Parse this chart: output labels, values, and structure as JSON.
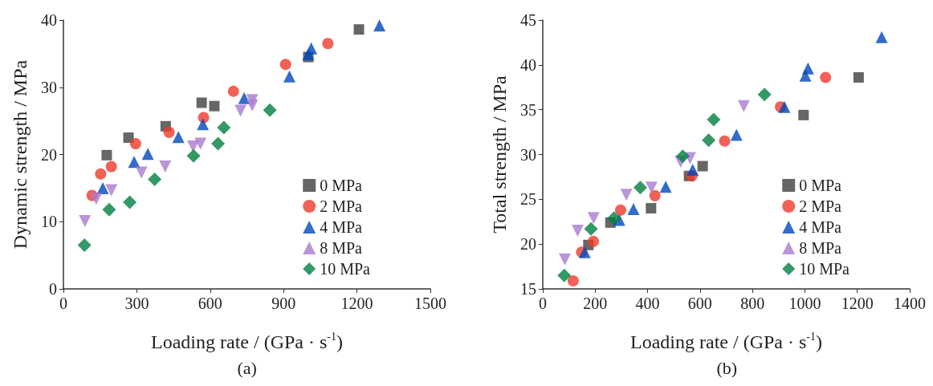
{
  "chart_data": [
    {
      "type": "scatter",
      "xlabel": "Loading rate / (GPa · s$^{-1}$)",
      "ylabel": "Dynamic strength / MPa",
      "annotations": [
        "(a)"
      ],
      "xlim": [
        0,
        1500
      ],
      "xticks": [
        0,
        300,
        600,
        900,
        1200,
        1500
      ],
      "ylim": [
        0,
        40
      ],
      "yticks": [
        0,
        10,
        20,
        30,
        40
      ],
      "grid": false,
      "legend": "bottom right",
      "series": [
        {
          "name": "0 MPa",
          "color": "#404040",
          "marker": "square",
          "x": [
            177,
            266,
            418,
            565,
            617,
            1001,
            1208
          ],
          "values": [
            19.9,
            22.5,
            24.2,
            27.7,
            27.2,
            34.5,
            38.6
          ]
        },
        {
          "name": "2 MPa",
          "color": "#ee3a2c",
          "marker": "circle",
          "x": [
            117,
            152,
            196,
            295,
            432,
            573,
            695,
            908,
            1081
          ],
          "values": [
            13.9,
            17.1,
            18.2,
            21.6,
            23.3,
            25.5,
            29.4,
            33.4,
            36.5
          ]
        },
        {
          "name": "4 MPa",
          "color": "#0047bb",
          "marker": "triangle",
          "x": [
            161,
            289,
            345,
            470,
            570,
            739,
            924,
            1001,
            1013,
            1292
          ],
          "values": [
            15.0,
            18.9,
            20.1,
            22.6,
            24.5,
            28.4,
            31.6,
            34.9,
            35.8,
            39.2
          ]
        },
        {
          "name": "8 MPa",
          "color": "#a97ad0",
          "marker": "triangle_down",
          "x": [
            88,
            134,
            196,
            319,
            416,
            530,
            560,
            724,
            772,
            772
          ],
          "values": [
            10.1,
            13.4,
            14.7,
            17.3,
            18.2,
            21.2,
            21.6,
            26.5,
            28.1,
            27.3
          ]
        },
        {
          "name": "10 MPa",
          "color": "#008040",
          "marker": "diamond",
          "x": [
            86,
            187,
            271,
            373,
            532,
            632,
            656,
            844
          ],
          "values": [
            6.5,
            11.8,
            12.9,
            16.3,
            19.8,
            21.6,
            24.0,
            26.6
          ]
        }
      ]
    },
    {
      "type": "scatter",
      "xlabel": "Loading rate / (GPa · s$^{-1}$)",
      "ylabel": "Total strength / MPa",
      "annotations": [
        "(b)"
      ],
      "xlim": [
        0,
        1400
      ],
      "xticks": [
        0,
        200,
        400,
        600,
        800,
        1000,
        1200,
        1400
      ],
      "ylim": [
        15,
        45
      ],
      "yticks": [
        15,
        20,
        25,
        30,
        35,
        40,
        45
      ],
      "grid": false,
      "legend": "bottom right",
      "series": [
        {
          "name": "0 MPa",
          "color": "#404040",
          "marker": "square",
          "x": [
            174,
            258,
            413,
            558,
            610,
            995,
            1205
          ],
          "values": [
            19.9,
            22.4,
            24.0,
            27.6,
            28.7,
            34.4,
            38.6
          ]
        },
        {
          "name": "2 MPa",
          "color": "#ee3a2c",
          "marker": "circle",
          "x": [
            116,
            148,
            193,
            297,
            428,
            569,
            694,
            907,
            1079
          ],
          "values": [
            15.9,
            19.1,
            20.3,
            23.8,
            25.4,
            27.6,
            31.5,
            35.3,
            38.6
          ]
        },
        {
          "name": "4 MPa",
          "color": "#0047bb",
          "marker": "triangle",
          "x": [
            160,
            292,
            346,
            469,
            572,
            739,
            922,
            1002,
            1012,
            1293
          ],
          "values": [
            19.1,
            22.7,
            23.9,
            26.4,
            28.3,
            32.2,
            35.3,
            38.8,
            39.6,
            43.1
          ]
        },
        {
          "name": "8 MPa",
          "color": "#a97ad0",
          "marker": "triangle_down",
          "x": [
            84,
            133,
            194,
            319,
            415,
            526,
            562,
            767
          ],
          "values": [
            18.3,
            21.5,
            22.9,
            25.5,
            26.3,
            29.2,
            29.6,
            35.4
          ]
        },
        {
          "name": "10 MPa",
          "color": "#008040",
          "marker": "diamond",
          "x": [
            82,
            184,
            272,
            372,
            534,
            633,
            652,
            846
          ],
          "values": [
            16.5,
            21.7,
            22.9,
            26.3,
            29.8,
            31.6,
            33.9,
            36.7
          ]
        }
      ]
    }
  ]
}
